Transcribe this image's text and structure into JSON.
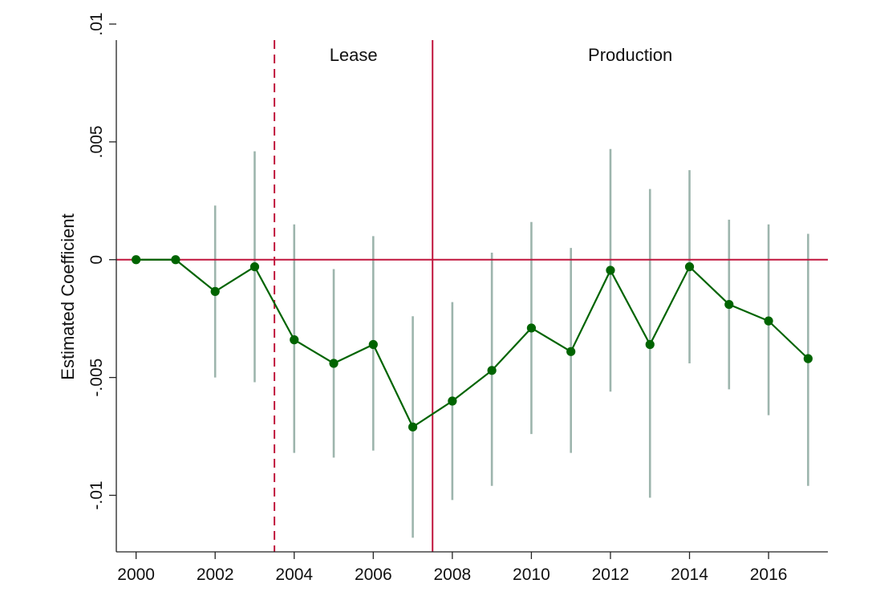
{
  "chart_data": {
    "type": "line",
    "title": "",
    "xlabel": "",
    "ylabel": "Estimated Coefficient",
    "xlim": [
      1999.5,
      2017.5
    ],
    "ylim": [
      -0.0124,
      0.01
    ],
    "xticks": [
      2000,
      2002,
      2004,
      2006,
      2008,
      2010,
      2012,
      2014,
      2016
    ],
    "xtick_labels": [
      "2000",
      "2002",
      "2004",
      "2006",
      "2008",
      "2010",
      "2012",
      "2014",
      "2016"
    ],
    "yticks": [
      -0.01,
      -0.005,
      0,
      0.005,
      0.01
    ],
    "ytick_labels": [
      "-.01",
      "-.005",
      "0",
      ".005",
      ".01"
    ],
    "grid": false,
    "reference_lines": {
      "horizontal_zero": 0,
      "lease_start": 2003.5,
      "production_start": 2007.5
    },
    "region_labels": [
      {
        "text": "Lease",
        "x": 2005.5
      },
      {
        "text": "Production",
        "x": 2012.5
      }
    ],
    "series": [
      {
        "x": [
          2000,
          2001,
          2002,
          2003,
          2004,
          2005,
          2006,
          2007,
          2008,
          2009,
          2010,
          2011,
          2012,
          2013,
          2014,
          2015,
          2016,
          2017
        ],
        "values": [
          0,
          0,
          -0.00135,
          -0.0003,
          -0.0034,
          -0.0044,
          -0.0036,
          -0.0071,
          -0.006,
          -0.0047,
          -0.0029,
          -0.0039,
          -0.00045,
          -0.0036,
          -0.0003,
          -0.0019,
          -0.0026,
          -0.0042
        ],
        "ci_lower": [
          null,
          null,
          -0.005,
          -0.0052,
          -0.0082,
          -0.0084,
          -0.0081,
          -0.0118,
          -0.0102,
          -0.0096,
          -0.0074,
          -0.0082,
          -0.0056,
          -0.0101,
          -0.0044,
          -0.0055,
          -0.0066,
          -0.0096
        ],
        "ci_upper": [
          null,
          null,
          0.0023,
          0.0046,
          0.0015,
          -0.0004,
          0.001,
          -0.0024,
          -0.0018,
          0.0003,
          0.0016,
          0.0005,
          0.0047,
          0.003,
          0.0038,
          0.0017,
          0.0015,
          0.0011
        ]
      }
    ],
    "colors": {
      "series": "#006400",
      "ci": "#9db5ad",
      "reference": "#c0143c",
      "axis": "#222222"
    }
  }
}
